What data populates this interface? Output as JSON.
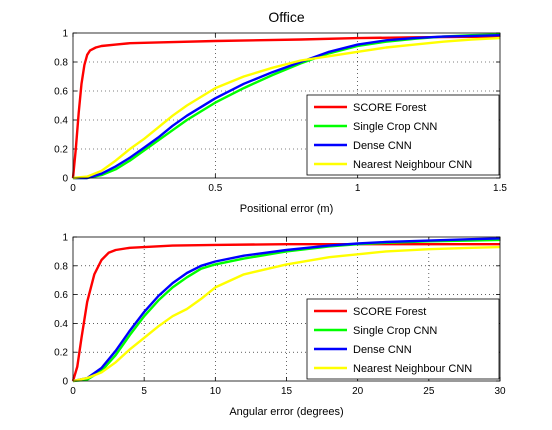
{
  "chart_data": [
    {
      "type": "line",
      "title": "Office",
      "xlabel": "Positional error (m)",
      "ylabel": "",
      "xlim": [
        0,
        1.5
      ],
      "ylim": [
        0,
        1
      ],
      "xticks": [
        "0",
        "0.5",
        "1",
        "1.5"
      ],
      "yticks": [
        "0",
        "0.2",
        "0.4",
        "0.6",
        "0.8",
        "1"
      ],
      "grid": true,
      "legend": "bottom-right",
      "series": [
        {
          "name": "SCORE Forest",
          "color": "#ff0000",
          "x": [
            0,
            0.01,
            0.02,
            0.03,
            0.04,
            0.05,
            0.06,
            0.08,
            0.1,
            0.15,
            0.2,
            0.3,
            0.5,
            0.8,
            1.0,
            1.2,
            1.5
          ],
          "y": [
            0,
            0.2,
            0.45,
            0.65,
            0.78,
            0.85,
            0.88,
            0.9,
            0.91,
            0.92,
            0.93,
            0.935,
            0.945,
            0.955,
            0.965,
            0.97,
            0.975
          ]
        },
        {
          "name": "Single Crop CNN",
          "color": "#00ff00",
          "x": [
            0,
            0.05,
            0.1,
            0.15,
            0.2,
            0.25,
            0.3,
            0.35,
            0.4,
            0.5,
            0.6,
            0.7,
            0.8,
            0.9,
            1.0,
            1.1,
            1.2,
            1.3,
            1.4,
            1.5
          ],
          "y": [
            0,
            0,
            0.02,
            0.06,
            0.12,
            0.19,
            0.26,
            0.33,
            0.4,
            0.52,
            0.62,
            0.71,
            0.79,
            0.86,
            0.91,
            0.94,
            0.96,
            0.975,
            0.985,
            0.99
          ]
        },
        {
          "name": "Dense CNN",
          "color": "#0000ff",
          "x": [
            0,
            0.05,
            0.1,
            0.15,
            0.2,
            0.25,
            0.3,
            0.35,
            0.4,
            0.5,
            0.6,
            0.7,
            0.8,
            0.9,
            1.0,
            1.1,
            1.2,
            1.3,
            1.4,
            1.5
          ],
          "y": [
            0,
            0,
            0.03,
            0.08,
            0.14,
            0.21,
            0.28,
            0.36,
            0.43,
            0.55,
            0.65,
            0.73,
            0.8,
            0.87,
            0.92,
            0.95,
            0.965,
            0.975,
            0.98,
            0.985
          ]
        },
        {
          "name": "Nearest Neighbour CNN",
          "color": "#ffff00",
          "x": [
            0,
            0.05,
            0.1,
            0.15,
            0.2,
            0.25,
            0.3,
            0.35,
            0.4,
            0.5,
            0.6,
            0.7,
            0.8,
            0.9,
            1.0,
            1.1,
            1.2,
            1.3,
            1.4,
            1.5
          ],
          "y": [
            0,
            0.01,
            0.05,
            0.12,
            0.2,
            0.27,
            0.35,
            0.43,
            0.5,
            0.62,
            0.7,
            0.76,
            0.81,
            0.84,
            0.87,
            0.9,
            0.92,
            0.94,
            0.955,
            0.965
          ]
        }
      ]
    },
    {
      "type": "line",
      "title": "",
      "xlabel": "Angular error (degrees)",
      "ylabel": "",
      "xlim": [
        0,
        30
      ],
      "ylim": [
        0,
        1
      ],
      "xticks": [
        "0",
        "5",
        "10",
        "15",
        "20",
        "25",
        "30"
      ],
      "yticks": [
        "0",
        "0.2",
        "0.4",
        "0.6",
        "0.8",
        "1"
      ],
      "grid": true,
      "legend": "bottom-right",
      "series": [
        {
          "name": "SCORE Forest",
          "color": "#ff0000",
          "x": [
            0,
            0.3,
            0.6,
            1.0,
            1.5,
            2.0,
            2.5,
            3.0,
            4.0,
            5.0,
            7.0,
            10.0,
            15.0,
            20.0,
            25.0,
            30.0
          ],
          "y": [
            0,
            0.1,
            0.3,
            0.55,
            0.74,
            0.84,
            0.89,
            0.91,
            0.925,
            0.93,
            0.94,
            0.945,
            0.95,
            0.95,
            0.95,
            0.95
          ]
        },
        {
          "name": "Single Crop CNN",
          "color": "#00ff00",
          "x": [
            0,
            1,
            2,
            3,
            4,
            5,
            6,
            7,
            8,
            9,
            10,
            12,
            15,
            18,
            20,
            22,
            25,
            28,
            30
          ],
          "y": [
            0,
            0.01,
            0.07,
            0.18,
            0.32,
            0.45,
            0.56,
            0.65,
            0.72,
            0.78,
            0.81,
            0.85,
            0.9,
            0.935,
            0.95,
            0.96,
            0.97,
            0.975,
            0.98
          ]
        },
        {
          "name": "Dense CNN",
          "color": "#0000ff",
          "x": [
            0,
            1,
            2,
            3,
            4,
            5,
            6,
            7,
            8,
            9,
            10,
            12,
            15,
            18,
            20,
            22,
            25,
            28,
            30
          ],
          "y": [
            0,
            0.02,
            0.09,
            0.21,
            0.35,
            0.48,
            0.59,
            0.68,
            0.75,
            0.8,
            0.83,
            0.87,
            0.91,
            0.94,
            0.955,
            0.965,
            0.975,
            0.985,
            0.99
          ]
        },
        {
          "name": "Nearest Neighbour CNN",
          "color": "#ffff00",
          "x": [
            0,
            1,
            2,
            3,
            4,
            5,
            6,
            7,
            8,
            9,
            10,
            12,
            15,
            18,
            20,
            22,
            25,
            28,
            30
          ],
          "y": [
            0,
            0.02,
            0.06,
            0.13,
            0.22,
            0.3,
            0.38,
            0.45,
            0.5,
            0.57,
            0.65,
            0.74,
            0.81,
            0.86,
            0.88,
            0.9,
            0.915,
            0.925,
            0.93
          ]
        }
      ]
    }
  ]
}
